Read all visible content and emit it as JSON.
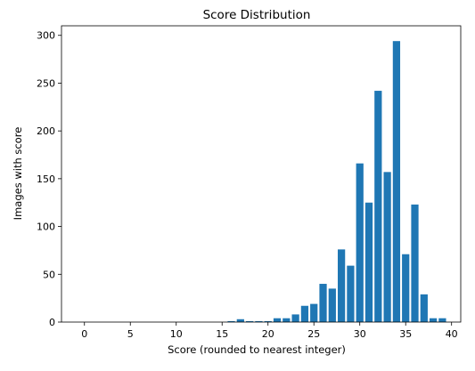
{
  "chart_data": {
    "type": "bar",
    "title": "Score Distribution",
    "xlabel": "Score (rounded to nearest integer)",
    "ylabel": "Images with score",
    "xlim": [
      -2.5,
      41.0
    ],
    "ylim": [
      0,
      310
    ],
    "xticks": [
      0,
      5,
      10,
      15,
      20,
      25,
      30,
      35,
      40
    ],
    "yticks": [
      0,
      50,
      100,
      150,
      200,
      250,
      300
    ],
    "grid": false,
    "bar_color": "#1f77b4",
    "x": [
      16,
      17,
      18,
      19,
      20,
      21,
      22,
      23,
      24,
      25,
      26,
      27,
      28,
      29,
      30,
      31,
      32,
      33,
      34,
      35,
      36,
      37,
      38,
      39
    ],
    "values": [
      1,
      3,
      1,
      1,
      1,
      4,
      4,
      8,
      17,
      19,
      40,
      35,
      76,
      59,
      166,
      125,
      242,
      157,
      294,
      71,
      123,
      29,
      4,
      4
    ]
  }
}
